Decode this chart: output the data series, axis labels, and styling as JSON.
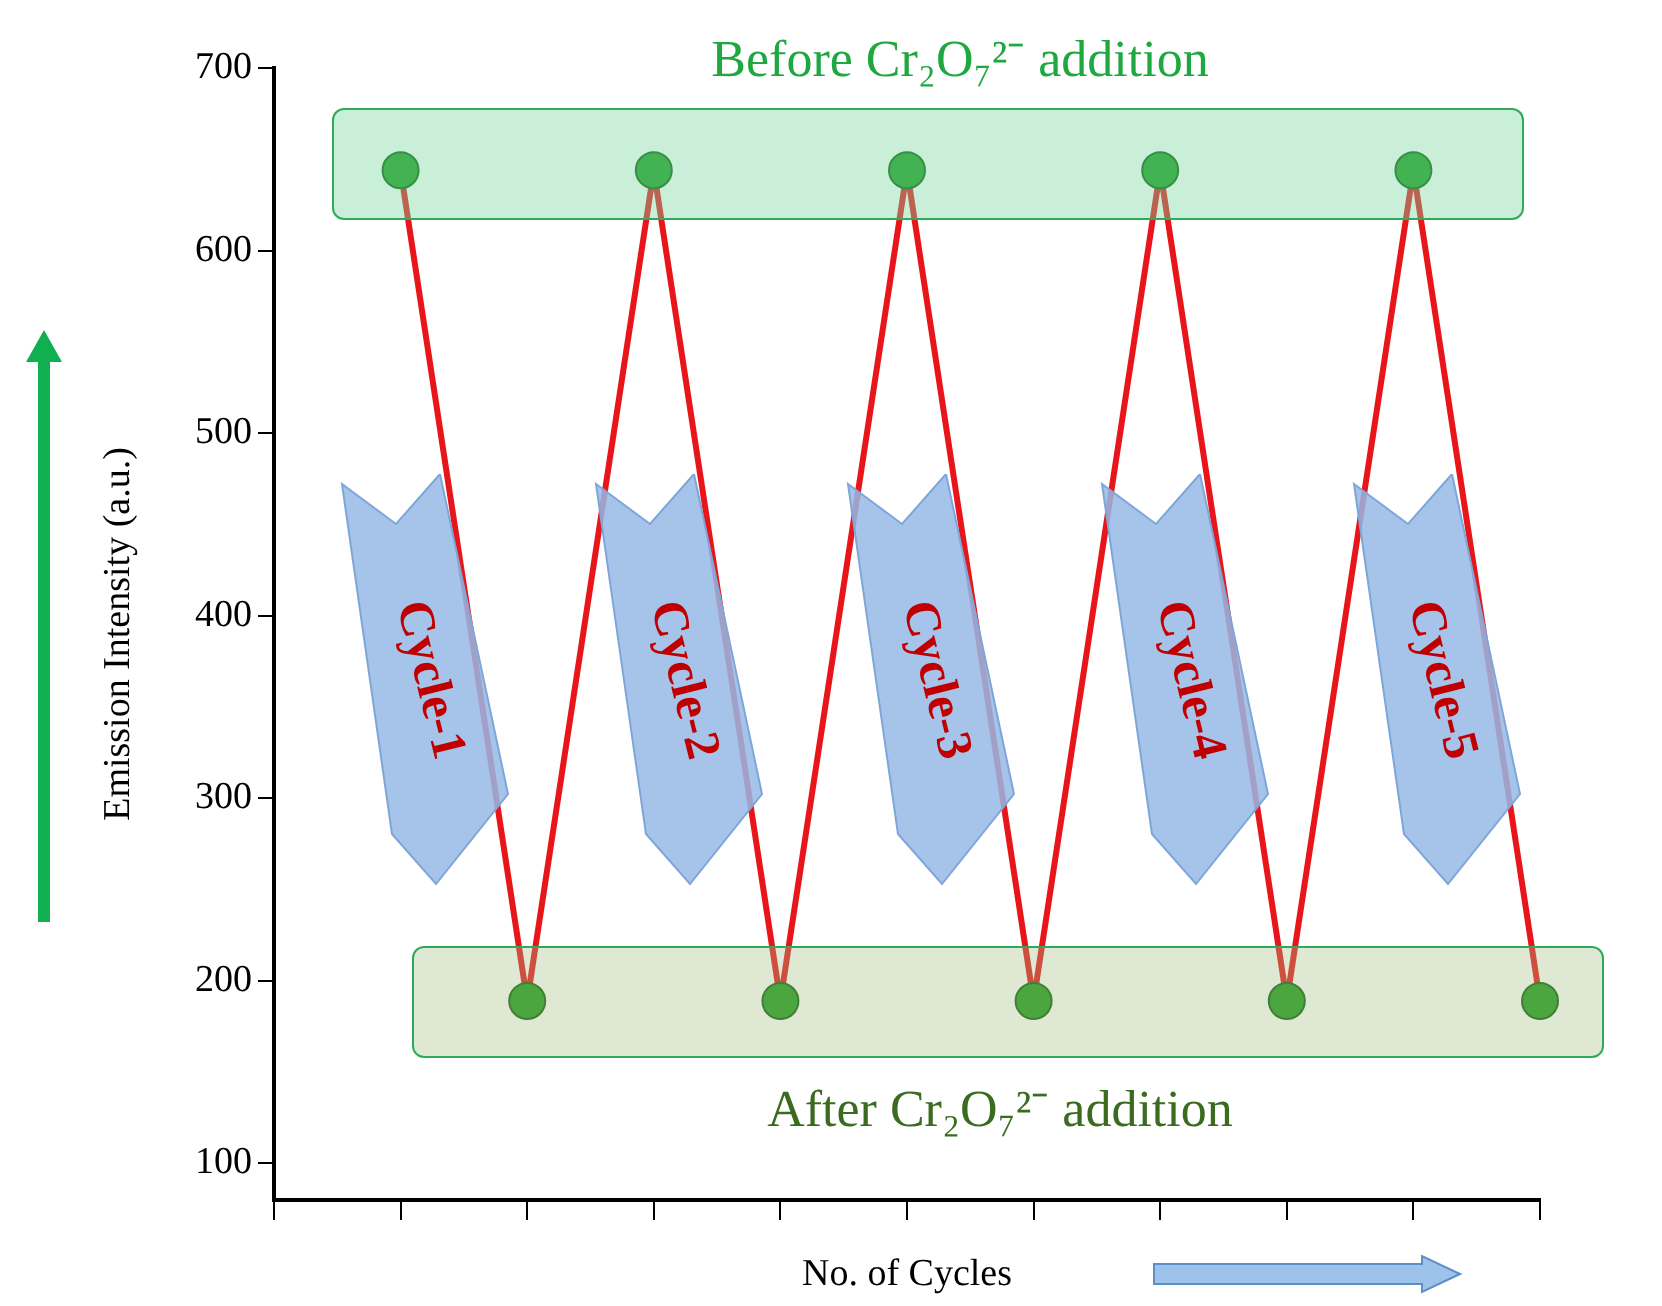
{
  "chart_data": {
    "type": "line",
    "xlabel": "No. of Cycles",
    "ylabel": "Emission Intensity (a.u.)",
    "categories": [
      null,
      null,
      null,
      null,
      null,
      null,
      null,
      null,
      null,
      null,
      null
    ],
    "series": [
      {
        "color": "#e8151b",
        "values": [
          null,
          644,
          189,
          644,
          189,
          644,
          189,
          644,
          189,
          644,
          189
        ]
      }
    ],
    "ylim": [
      80,
      700
    ],
    "yticks": [
      100,
      200,
      300,
      400,
      500,
      600,
      700
    ],
    "grid": false,
    "legend": false,
    "marker": "circle",
    "line_style": "solid",
    "annotations": [
      "Before Cr₂O₇²⁻ addition",
      "After Cr₂O₇²⁻ addition",
      "Cycle-1",
      "Cycle-2",
      "Cycle-3",
      "Cycle-4",
      "Cycle-5"
    ]
  }
}
